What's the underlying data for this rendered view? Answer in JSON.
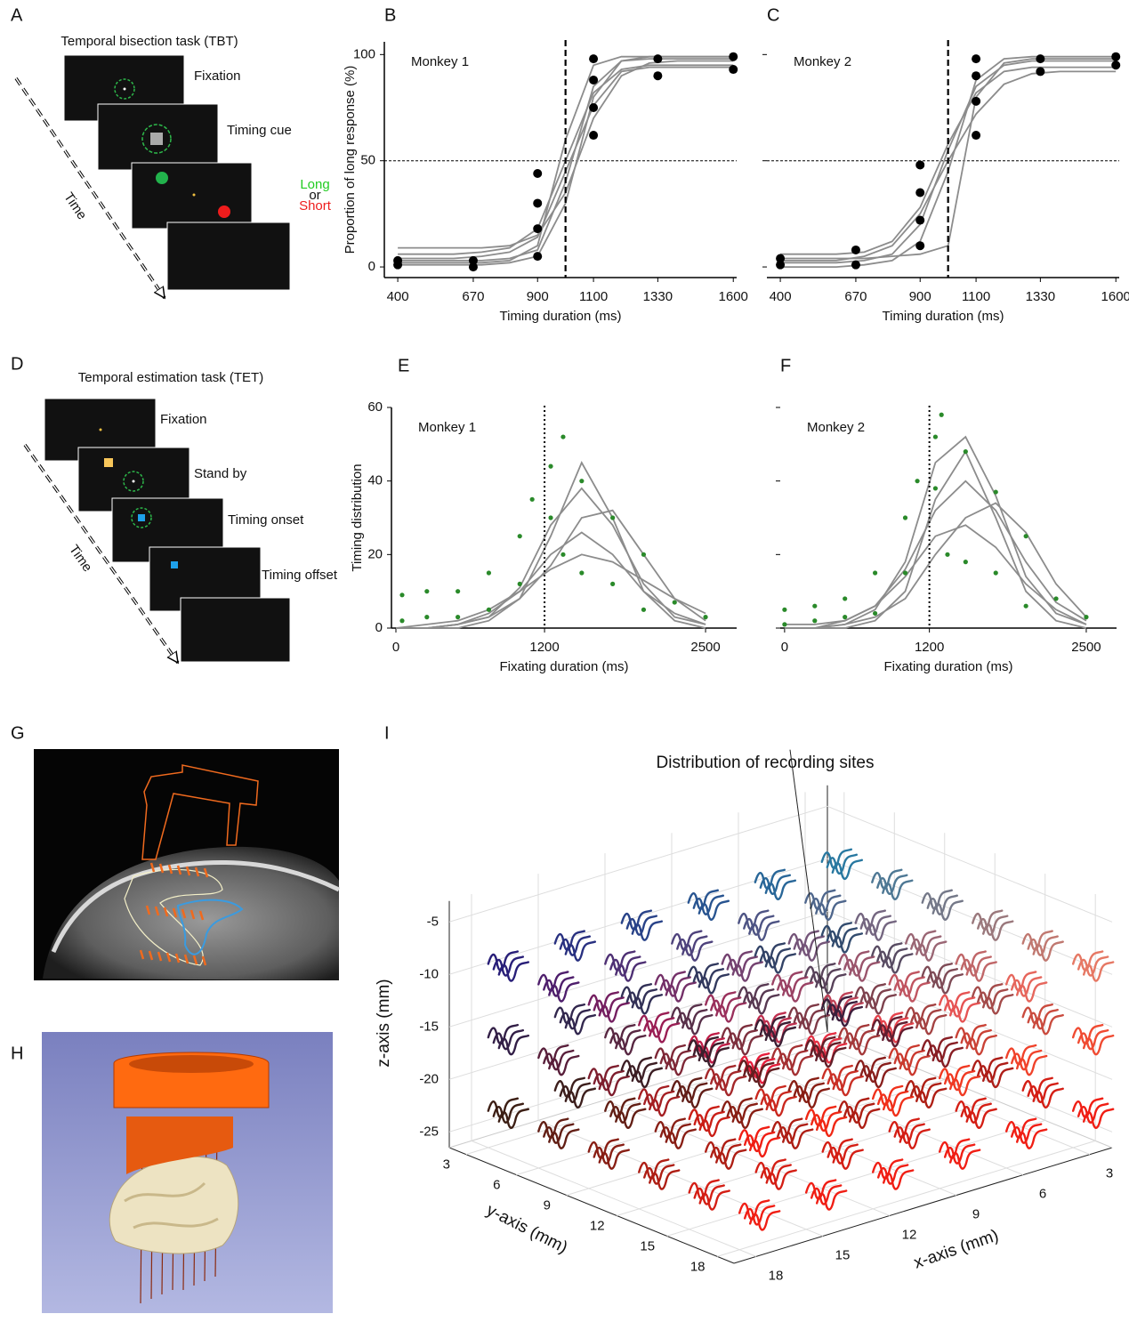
{
  "chart_data": [
    {
      "type": "line",
      "panel": "B",
      "annotation": "Monkey 1",
      "xlabel": "Timing duration (ms)",
      "ylabel": "Proportion of long response (%)",
      "xlim": [
        352,
        1612
      ],
      "ylim": [
        -5,
        106
      ],
      "xticks": [
        400,
        670,
        900,
        1100,
        1330,
        1600
      ],
      "yticks": [
        0,
        50,
        100
      ],
      "show_yticklabels": true,
      "hline": 50,
      "vline": 1000,
      "vline_style": "dashed",
      "series": [
        {
          "mode": "lines",
          "color": "#8c8c8c",
          "x": [
            400,
            500,
            600,
            700,
            800,
            900,
            1000,
            1100,
            1200,
            1300,
            1400,
            1500,
            1600
          ],
          "values": [
            3,
            3,
            3,
            3,
            4,
            8,
            40,
            85,
            97,
            98,
            98,
            98,
            98
          ]
        },
        {
          "mode": "lines",
          "color": "#8c8c8c",
          "x": [
            400,
            500,
            600,
            700,
            800,
            900,
            1000,
            1100,
            1200,
            1300,
            1400,
            1500,
            1600
          ],
          "values": [
            6,
            6,
            6,
            7,
            9,
            18,
            50,
            82,
            93,
            95,
            95,
            95,
            95
          ]
        },
        {
          "mode": "lines",
          "color": "#8c8c8c",
          "x": [
            400,
            500,
            600,
            700,
            800,
            900,
            1000,
            1100,
            1200,
            1300,
            1400,
            1500,
            1600
          ],
          "values": [
            1,
            1,
            1,
            1,
            2,
            5,
            30,
            80,
            97,
            99,
            99,
            99,
            99
          ]
        },
        {
          "mode": "lines",
          "color": "#8c8c8c",
          "x": [
            400,
            500,
            600,
            700,
            800,
            900,
            1000,
            1100,
            1200,
            1300,
            1400,
            1500,
            1600
          ],
          "values": [
            9,
            9,
            9,
            9,
            10,
            15,
            35,
            70,
            90,
            96,
            97,
            97,
            97
          ]
        },
        {
          "mode": "lines",
          "color": "#8c8c8c",
          "x": [
            400,
            500,
            600,
            700,
            800,
            900,
            1000,
            1100,
            1200,
            1300,
            1400,
            1500,
            1600
          ],
          "values": [
            2,
            2,
            2,
            2,
            3,
            10,
            60,
            95,
            99,
            99,
            99,
            99,
            99
          ]
        },
        {
          "mode": "lines",
          "color": "#8c8c8c",
          "x": [
            400,
            500,
            600,
            700,
            800,
            900,
            1000,
            1100,
            1200,
            1300,
            1400,
            1500,
            1600
          ],
          "values": [
            4,
            4,
            4,
            5,
            7,
            14,
            45,
            76,
            92,
            94,
            94,
            94,
            94
          ]
        },
        {
          "mode": "markers",
          "color": "#000000",
          "x": [
            400,
            400,
            670,
            670,
            900,
            900,
            900,
            900,
            1100,
            1100,
            1100,
            1100,
            1330,
            1330,
            1600,
            1600
          ],
          "values": [
            1,
            3,
            0,
            3,
            5,
            18,
            30,
            44,
            62,
            75,
            88,
            98,
            90,
            98,
            93,
            99
          ]
        }
      ]
    },
    {
      "type": "line",
      "panel": "C",
      "annotation": "Monkey 2",
      "xlabel": "Timing duration (ms)",
      "xlim": [
        352,
        1612
      ],
      "ylim": [
        -5,
        106
      ],
      "xticks": [
        400,
        670,
        900,
        1100,
        1330,
        1600
      ],
      "yticks": [
        0,
        50,
        100
      ],
      "show_yticklabels": false,
      "hline": 50,
      "vline": 1000,
      "vline_style": "dashed",
      "series": [
        {
          "mode": "lines",
          "color": "#8c8c8c",
          "x": [
            400,
            500,
            600,
            700,
            800,
            900,
            1000,
            1100,
            1200,
            1300,
            1400,
            1500,
            1600
          ],
          "values": [
            2,
            2,
            2,
            3,
            6,
            20,
            55,
            85,
            95,
            97,
            97,
            97,
            97
          ]
        },
        {
          "mode": "lines",
          "color": "#8c8c8c",
          "x": [
            400,
            500,
            600,
            700,
            800,
            900,
            1000,
            1100,
            1200,
            1300,
            1400,
            1500,
            1600
          ],
          "values": [
            6,
            6,
            6,
            7,
            12,
            28,
            58,
            82,
            92,
            94,
            94,
            94,
            94
          ]
        },
        {
          "mode": "lines",
          "color": "#8c8c8c",
          "x": [
            400,
            500,
            600,
            700,
            800,
            900,
            1000,
            1100,
            1200,
            1300,
            1400,
            1500,
            1600
          ],
          "values": [
            0,
            0,
            0,
            1,
            3,
            12,
            45,
            88,
            98,
            99,
            99,
            99,
            99
          ]
        },
        {
          "mode": "lines",
          "color": "#8c8c8c",
          "x": [
            400,
            500,
            600,
            700,
            800,
            900,
            1000,
            1100,
            1200,
            1300,
            1400,
            1500,
            1600
          ],
          "values": [
            4,
            4,
            4,
            4,
            5,
            6,
            10,
            80,
            96,
            98,
            98,
            98,
            98
          ]
        },
        {
          "mode": "lines",
          "color": "#8c8c8c",
          "x": [
            400,
            500,
            600,
            700,
            800,
            900,
            1000,
            1100,
            1200,
            1300,
            1400,
            1500,
            1600
          ],
          "values": [
            3,
            3,
            3,
            5,
            10,
            25,
            50,
            72,
            86,
            91,
            92,
            92,
            92
          ]
        },
        {
          "mode": "markers",
          "color": "#000000",
          "x": [
            400,
            400,
            670,
            670,
            900,
            900,
            900,
            900,
            1100,
            1100,
            1100,
            1100,
            1330,
            1330,
            1600,
            1600
          ],
          "values": [
            1,
            4,
            1,
            8,
            10,
            22,
            35,
            48,
            62,
            78,
            90,
            98,
            92,
            98,
            95,
            99
          ]
        }
      ]
    },
    {
      "type": "line",
      "panel": "E",
      "annotation": "Monkey 1",
      "xlabel": "Fixating duration (ms)",
      "ylabel": "Timing distribution",
      "xlim": [
        -36,
        2751
      ],
      "ylim": [
        0,
        60
      ],
      "xticks": [
        0,
        1200,
        2500
      ],
      "yticks": [
        0,
        20,
        40,
        60
      ],
      "show_yticklabels": true,
      "vline": 1200,
      "vline_style": "dotted",
      "series": [
        {
          "mode": "lines",
          "color": "#8c8c8c",
          "x": [
            0,
            250,
            500,
            750,
            1000,
            1250,
            1500,
            1750,
            2000,
            2250,
            2500
          ],
          "values": [
            0,
            0,
            1,
            3,
            11,
            28,
            38,
            28,
            12,
            3,
            1
          ]
        },
        {
          "mode": "lines",
          "color": "#8c8c8c",
          "x": [
            0,
            250,
            500,
            750,
            1000,
            1250,
            1500,
            1750,
            2000,
            2250,
            2500
          ],
          "values": [
            0,
            0,
            1,
            4,
            10,
            20,
            26,
            20,
            10,
            4,
            1
          ]
        },
        {
          "mode": "lines",
          "color": "#8c8c8c",
          "x": [
            0,
            250,
            500,
            750,
            1000,
            1250,
            1500,
            1750,
            2000,
            2250,
            2500
          ],
          "values": [
            0,
            0,
            0,
            2,
            8,
            25,
            45,
            30,
            10,
            2,
            0
          ]
        },
        {
          "mode": "lines",
          "color": "#8c8c8c",
          "x": [
            0,
            250,
            500,
            750,
            1000,
            1250,
            1500,
            1750,
            2000,
            2250,
            2500
          ],
          "values": [
            0,
            1,
            2,
            5,
            10,
            16,
            20,
            18,
            13,
            8,
            4
          ]
        },
        {
          "mode": "lines",
          "color": "#8c8c8c",
          "x": [
            0,
            250,
            500,
            750,
            1000,
            1250,
            1500,
            1750,
            2000,
            2250,
            2500
          ],
          "values": [
            0,
            0,
            1,
            3,
            8,
            17,
            30,
            32,
            20,
            8,
            2
          ]
        },
        {
          "mode": "markers",
          "color": "#2a8a2a",
          "x": [
            50,
            50,
            250,
            250,
            500,
            500,
            750,
            750,
            1000,
            1000,
            1100,
            1250,
            1250,
            1350,
            1350,
            1500,
            1500,
            1750,
            1750,
            2000,
            2000,
            2250,
            2500
          ],
          "values": [
            2,
            9,
            3,
            10,
            3,
            10,
            5,
            15,
            12,
            25,
            35,
            30,
            44,
            20,
            52,
            15,
            40,
            12,
            30,
            5,
            20,
            7,
            3
          ]
        }
      ]
    },
    {
      "type": "line",
      "panel": "F",
      "annotation": "Monkey 2",
      "xlabel": "Fixating duration (ms)",
      "xlim": [
        -36,
        2751
      ],
      "ylim": [
        0,
        60
      ],
      "xticks": [
        0,
        1200,
        2500
      ],
      "yticks": [
        0,
        20,
        40,
        60
      ],
      "show_yticklabels": false,
      "vline": 1200,
      "vline_style": "dotted",
      "series": [
        {
          "mode": "lines",
          "color": "#8c8c8c",
          "x": [
            0,
            250,
            500,
            750,
            1000,
            1250,
            1500,
            1750,
            2000,
            2250,
            2500
          ],
          "values": [
            0,
            0,
            1,
            5,
            18,
            45,
            52,
            36,
            14,
            4,
            1
          ]
        },
        {
          "mode": "lines",
          "color": "#8c8c8c",
          "x": [
            0,
            250,
            500,
            750,
            1000,
            1250,
            1500,
            1750,
            2000,
            2250,
            2500
          ],
          "values": [
            0,
            0,
            2,
            6,
            16,
            32,
            40,
            32,
            18,
            7,
            2
          ]
        },
        {
          "mode": "lines",
          "color": "#8c8c8c",
          "x": [
            0,
            250,
            500,
            750,
            1000,
            1250,
            1500,
            1750,
            2000,
            2250,
            2500
          ],
          "values": [
            0,
            0,
            0,
            2,
            10,
            35,
            48,
            30,
            10,
            2,
            0
          ]
        },
        {
          "mode": "lines",
          "color": "#8c8c8c",
          "x": [
            0,
            250,
            500,
            750,
            1000,
            1250,
            1500,
            1750,
            2000,
            2250,
            2500
          ],
          "values": [
            0,
            0,
            1,
            3,
            8,
            20,
            30,
            34,
            26,
            12,
            3
          ]
        },
        {
          "mode": "lines",
          "color": "#8c8c8c",
          "x": [
            0,
            250,
            500,
            750,
            1000,
            1250,
            1500,
            1750,
            2000,
            2250,
            2500
          ],
          "values": [
            1,
            1,
            2,
            6,
            14,
            25,
            28,
            22,
            12,
            5,
            1
          ]
        },
        {
          "mode": "markers",
          "color": "#2a8a2a",
          "x": [
            0,
            0,
            250,
            250,
            500,
            500,
            750,
            750,
            1000,
            1000,
            1100,
            1250,
            1250,
            1300,
            1350,
            1500,
            1500,
            1750,
            1750,
            2000,
            2000,
            2250,
            2500
          ],
          "values": [
            1,
            5,
            2,
            6,
            3,
            8,
            4,
            15,
            15,
            30,
            40,
            38,
            52,
            58,
            20,
            18,
            48,
            15,
            37,
            6,
            25,
            8,
            3
          ]
        }
      ]
    },
    {
      "type": "scatter3d",
      "panel": "I",
      "title": "Distribution of recording sites",
      "xlabel": "x-axis (mm)",
      "ylabel": "y-axis (mm)",
      "zlabel": "z-axis (mm)",
      "xlim": [
        2,
        19
      ],
      "ylim": [
        2,
        19
      ],
      "zlim": [
        -26.5,
        -3
      ],
      "xticks": [
        3,
        6,
        9,
        12,
        15,
        18
      ],
      "yticks": [
        3,
        6,
        9,
        12,
        15,
        18
      ],
      "zticks": [
        -25,
        -20,
        -15,
        -10,
        -5
      ]
    }
  ],
  "panels": {
    "A": {
      "letter": "A",
      "title": "Temporal bisection task (TBT)",
      "steps": [
        "Fixation",
        "Timing cue",
        "Long",
        "or",
        "Short"
      ],
      "arrow_label": "Time"
    },
    "D": {
      "letter": "D",
      "title": "Temporal estimation task (TET)",
      "steps": [
        "Fixation",
        "Stand by",
        "Timing onset",
        "Timing offset"
      ],
      "arrow_label": "Time"
    },
    "G": {
      "letter": "G"
    },
    "H": {
      "letter": "H"
    }
  }
}
